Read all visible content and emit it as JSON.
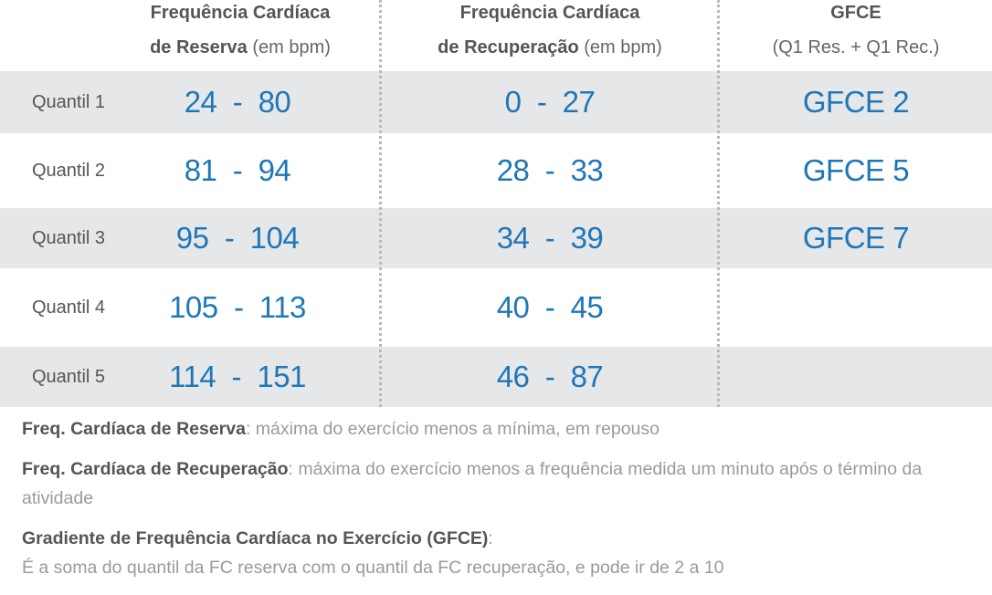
{
  "header": {
    "col1": {
      "bold_line1": "Frequência Cardíaca",
      "bold_line2": "de Reserva",
      "light_line2": " (em bpm)"
    },
    "col2": {
      "bold_line1": "Frequência Cardíaca",
      "bold_line2": "de Recuperação",
      "light_line2": " (em bpm)"
    },
    "col3": {
      "bold_line1": "GFCE",
      "light_line2": "(Q1 Res. + Q1 Rec.)"
    }
  },
  "rows": [
    {
      "label": "Quantil 1",
      "reserva": "24  -  80",
      "recuperacao": "0  -  27",
      "gfce": "GFCE 2"
    },
    {
      "label": "Quantil 2",
      "reserva": "81  -  94",
      "recuperacao": "28  -  33",
      "gfce": "GFCE 5"
    },
    {
      "label": "Quantil 3",
      "reserva": "95  -  104",
      "recuperacao": "34  -  39",
      "gfce": "GFCE 7"
    },
    {
      "label": "Quantil 4",
      "reserva": "105  -  113",
      "recuperacao": "40  -  45",
      "gfce": ""
    },
    {
      "label": "Quantil 5",
      "reserva": "114  -  151",
      "recuperacao": "46  -  87",
      "gfce": ""
    }
  ],
  "notes": [
    {
      "term": "Freq. Cardíaca de Reserva",
      "text": ": máxima do exercício menos a mínima, em repouso"
    },
    {
      "term": "Freq. Cardíaca de Recuperação",
      "text": ": máxima do exercício menos a frequência medida um minuto após o término da atividade"
    },
    {
      "term": "Gradiente de Frequência Cardíaca no Exercício (GFCE)",
      "text": ":",
      "line2": "É a soma do quantil da FC reserva com o quantil da FC recuperação, e pode ir de 2 a 10"
    }
  ],
  "colors": {
    "value_blue": "#1f77b8",
    "row_shade": "#e6e7e8",
    "text_dark": "#555555",
    "text_light": "#9a9a9a"
  }
}
